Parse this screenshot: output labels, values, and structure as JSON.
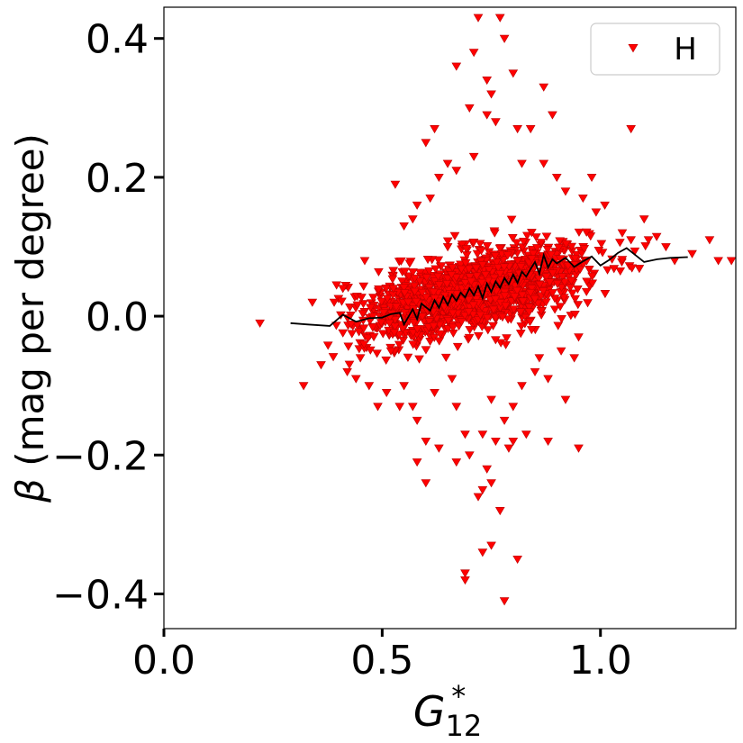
{
  "chart_data": {
    "type": "scatter",
    "xlabel": {
      "base": "G",
      "sub": "12",
      "sup": "*"
    },
    "ylabel": {
      "symbol": "β",
      "text": " (mag per degree)"
    },
    "xlim": [
      0.0,
      1.31
    ],
    "ylim": [
      -0.45,
      0.445
    ],
    "x_ticks": [
      0.0,
      0.5,
      1.0
    ],
    "x_tick_labels": [
      "0.0",
      "0.5",
      "1.0"
    ],
    "y_ticks": [
      -0.4,
      -0.2,
      0.0,
      0.2,
      0.4
    ],
    "y_tick_labels": [
      "−0.4",
      "−0.2",
      "0.0",
      "0.2",
      "0.4"
    ],
    "grid": false,
    "legend": {
      "position": "top-right",
      "entries": [
        {
          "label": "H",
          "marker": "triangle-down",
          "color": "#ff0000"
        }
      ]
    },
    "colors": {
      "scatter": "#ff0000",
      "marker_edge": "#bb0000",
      "trend": "#000000"
    },
    "series": [
      {
        "name": "H",
        "kind": "scatter",
        "marker": "triangle-down",
        "cloud": {
          "count": 1500,
          "x_mean": 0.71,
          "x_sd": 0.13,
          "x_range": [
            0.37,
            1.18
          ],
          "trend_slope": 0.14,
          "trend_intercept": -0.065,
          "residual_sd": 0.028
        },
        "points": [
          [
            0.72,
            0.43
          ],
          [
            0.77,
            0.43
          ],
          [
            0.78,
            0.4
          ],
          [
            0.71,
            0.38
          ],
          [
            0.67,
            0.36
          ],
          [
            0.74,
            0.34
          ],
          [
            0.8,
            0.35
          ],
          [
            0.87,
            0.33
          ],
          [
            0.75,
            0.32
          ],
          [
            0.7,
            0.3
          ],
          [
            0.74,
            0.29
          ],
          [
            0.62,
            0.27
          ],
          [
            0.89,
            0.29
          ],
          [
            0.84,
            0.27
          ],
          [
            0.76,
            0.28
          ],
          [
            0.81,
            0.27
          ],
          [
            0.6,
            0.25
          ],
          [
            0.71,
            0.23
          ],
          [
            0.67,
            0.21
          ],
          [
            1.07,
            0.27
          ],
          [
            0.63,
            0.2
          ],
          [
            0.65,
            0.22
          ],
          [
            0.53,
            0.19
          ],
          [
            0.82,
            0.22
          ],
          [
            0.87,
            0.22
          ],
          [
            0.58,
            0.16
          ],
          [
            0.61,
            0.17
          ],
          [
            0.92,
            0.18
          ],
          [
            0.9,
            0.2
          ],
          [
            0.98,
            0.2
          ],
          [
            0.96,
            0.17
          ],
          [
            0.57,
            0.14
          ],
          [
            0.99,
            0.15
          ],
          [
            1.01,
            0.16
          ],
          [
            0.55,
            0.13
          ],
          [
            1.1,
            0.14
          ],
          [
            1.05,
            0.12
          ],
          [
            1.07,
            0.11
          ],
          [
            1.11,
            0.11
          ],
          [
            1.25,
            0.11
          ],
          [
            1.21,
            0.09
          ],
          [
            1.27,
            0.08
          ],
          [
            1.3,
            0.08
          ],
          [
            1.32,
            0.07
          ],
          [
            1.15,
            0.1
          ],
          [
            1.17,
            0.08
          ],
          [
            0.22,
            -0.01
          ],
          [
            0.32,
            -0.1
          ],
          [
            0.36,
            -0.07
          ],
          [
            0.34,
            0.02
          ],
          [
            0.46,
            0.08
          ],
          [
            0.41,
            0.04
          ],
          [
            0.39,
            0.02
          ],
          [
            0.45,
            -0.06
          ],
          [
            0.52,
            -0.05
          ],
          [
            0.55,
            -0.1
          ],
          [
            0.58,
            -0.15
          ],
          [
            0.6,
            -0.18
          ],
          [
            0.58,
            -0.21
          ],
          [
            0.6,
            -0.24
          ],
          [
            0.57,
            -0.13
          ],
          [
            0.62,
            -0.11
          ],
          [
            0.67,
            -0.13
          ],
          [
            0.69,
            -0.17
          ],
          [
            0.7,
            -0.2
          ],
          [
            0.67,
            -0.21
          ],
          [
            0.73,
            -0.17
          ],
          [
            0.76,
            -0.18
          ],
          [
            0.8,
            -0.18
          ],
          [
            0.83,
            -0.17
          ],
          [
            0.88,
            -0.18
          ],
          [
            0.95,
            -0.19
          ],
          [
            0.92,
            -0.12
          ],
          [
            0.94,
            -0.06
          ],
          [
            0.88,
            -0.09
          ],
          [
            0.78,
            -0.15
          ],
          [
            0.75,
            -0.12
          ],
          [
            0.8,
            -0.13
          ],
          [
            0.74,
            -0.22
          ],
          [
            0.73,
            -0.25
          ],
          [
            0.75,
            -0.24
          ],
          [
            0.72,
            -0.26
          ],
          [
            0.77,
            -0.28
          ],
          [
            0.75,
            -0.33
          ],
          [
            0.73,
            -0.34
          ],
          [
            0.69,
            -0.37
          ],
          [
            0.69,
            -0.38
          ],
          [
            0.81,
            -0.35
          ],
          [
            0.78,
            -0.41
          ],
          [
            0.54,
            -0.13
          ],
          [
            0.49,
            -0.13
          ],
          [
            0.51,
            -0.11
          ],
          [
            0.66,
            -0.09
          ],
          [
            0.82,
            -0.1
          ],
          [
            0.85,
            -0.08
          ],
          [
            0.42,
            -0.08
          ],
          [
            0.44,
            -0.09
          ],
          [
            0.47,
            -0.1
          ],
          [
            0.86,
            -0.06
          ],
          [
            0.91,
            -0.05
          ],
          [
            0.95,
            -0.03
          ],
          [
            0.63,
            -0.19
          ],
          [
            0.79,
            -0.19
          ]
        ]
      },
      {
        "name": "",
        "kind": "line",
        "x": [
          0.29,
          0.33,
          0.38,
          0.41,
          0.44,
          0.47,
          0.5,
          0.52,
          0.54,
          0.55,
          0.57,
          0.58,
          0.59,
          0.61,
          0.62,
          0.63,
          0.64,
          0.65,
          0.66,
          0.67,
          0.68,
          0.69,
          0.7,
          0.71,
          0.72,
          0.73,
          0.74,
          0.75,
          0.76,
          0.77,
          0.78,
          0.79,
          0.8,
          0.81,
          0.82,
          0.83,
          0.84,
          0.85,
          0.86,
          0.87,
          0.88,
          0.89,
          0.9,
          0.92,
          0.94,
          0.96,
          0.98,
          1.0,
          1.02,
          1.04,
          1.06,
          1.08,
          1.1,
          1.13,
          1.16,
          1.2
        ],
        "y": [
          -0.01,
          -0.012,
          -0.014,
          0.002,
          -0.008,
          -0.003,
          -0.002,
          0.003,
          0.005,
          -0.012,
          0.01,
          -0.004,
          0.018,
          0.008,
          0.023,
          0.012,
          0.028,
          0.016,
          0.031,
          0.022,
          0.034,
          0.027,
          0.04,
          0.03,
          0.043,
          0.026,
          0.047,
          0.035,
          0.05,
          0.041,
          0.055,
          0.046,
          0.06,
          0.048,
          0.064,
          0.057,
          0.068,
          0.078,
          0.061,
          0.088,
          0.07,
          0.082,
          0.076,
          0.084,
          0.071,
          0.079,
          0.086,
          0.073,
          0.081,
          0.091,
          0.098,
          0.088,
          0.078,
          0.082,
          0.084,
          0.085
        ]
      }
    ]
  }
}
